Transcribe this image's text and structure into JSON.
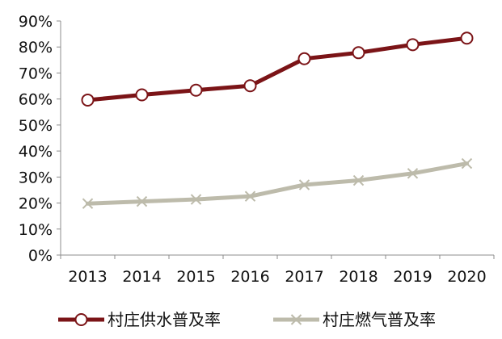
{
  "chart_data": {
    "type": "line",
    "title": "",
    "xlabel": "",
    "ylabel": "",
    "categories": [
      "2013",
      "2014",
      "2015",
      "2016",
      "2017",
      "2018",
      "2019",
      "2020"
    ],
    "ylim": [
      0,
      90
    ],
    "yticks": [
      0,
      10,
      20,
      30,
      40,
      50,
      60,
      70,
      80,
      90
    ],
    "ytick_labels": [
      "0%",
      "10%",
      "20%",
      "30%",
      "40%",
      "50%",
      "60%",
      "70%",
      "80%",
      "90%"
    ],
    "grid": false,
    "legend_position": "bottom",
    "series": [
      {
        "name": "村庄供水普及率",
        "values": [
          59.6,
          61.6,
          63.4,
          65.1,
          75.5,
          77.8,
          80.9,
          83.4
        ],
        "color": "#7b1417",
        "marker": "circle-open"
      },
      {
        "name": "村庄燃气普及率",
        "values": [
          19.8,
          20.6,
          21.4,
          22.6,
          27.0,
          28.7,
          31.4,
          35.2
        ],
        "color": "#bdbbab",
        "marker": "x"
      }
    ]
  }
}
